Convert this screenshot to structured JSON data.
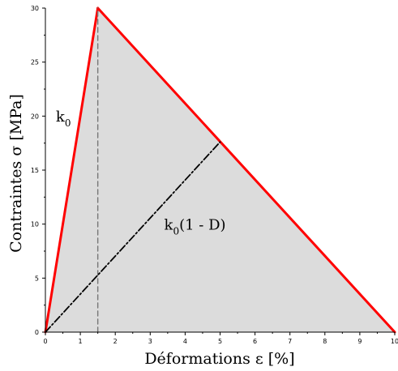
{
  "chart_data": {
    "type": "line",
    "title": "",
    "xlabel": "Déformations ε [%]",
    "ylabel": "Contraintes σ [MPa]",
    "xlim": [
      0,
      10
    ],
    "ylim": [
      0,
      30
    ],
    "x_ticks": [
      0,
      1,
      2,
      3,
      4,
      5,
      6,
      7,
      8,
      9,
      10
    ],
    "y_ticks": [
      0,
      5,
      10,
      15,
      20,
      25,
      30
    ],
    "grid": false,
    "series": [
      {
        "style": "solid",
        "color": "#ff0000",
        "fill": "#dcdcdc",
        "x": [
          0,
          1.5,
          10
        ],
        "y": [
          0,
          30,
          0
        ]
      },
      {
        "style": "dashed",
        "color": "#777777",
        "x": [
          1.5,
          1.5
        ],
        "y": [
          0,
          30
        ]
      },
      {
        "style": "dashdot",
        "color": "#000000",
        "x": [
          0,
          5.0
        ],
        "y": [
          0,
          17.6
        ]
      }
    ],
    "annotations": [
      {
        "base": "k",
        "sub": "0",
        "suffix": "",
        "x": 0.3,
        "y": 19.5
      },
      {
        "base": "k",
        "sub": "0",
        "suffix": "(1 - D)",
        "x": 3.4,
        "y": 9.5
      }
    ]
  }
}
